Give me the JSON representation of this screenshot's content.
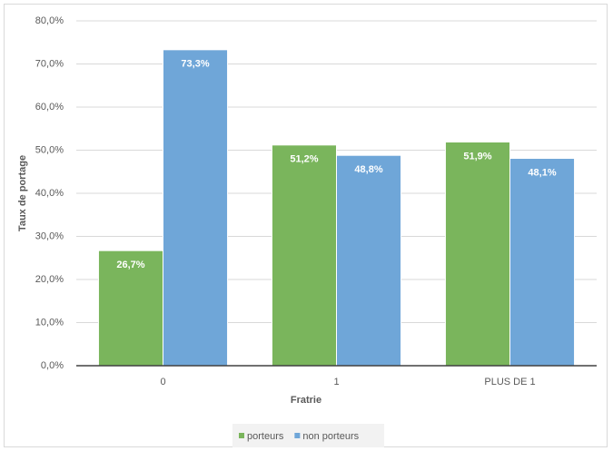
{
  "chart_data": {
    "type": "bar",
    "categories": [
      "0",
      "1",
      "PLUS DE 1"
    ],
    "series": [
      {
        "name": "porteurs",
        "color": "#7ab55c",
        "values": [
          26.7,
          51.2,
          51.9
        ],
        "value_labels": [
          "26,7%",
          "51,2%",
          "51,9%"
        ]
      },
      {
        "name": "non porteurs",
        "color": "#6fa6d8",
        "values": [
          73.3,
          48.8,
          48.1
        ],
        "value_labels": [
          "73,3%",
          "48,8%",
          "48,1%"
        ]
      }
    ],
    "x_label": "Fratrie",
    "y_label": "Taux de portage",
    "ylim": [
      0,
      80
    ],
    "yticks": [
      {
        "value": 0,
        "label": "0,0%"
      },
      {
        "value": 10,
        "label": "10,0%"
      },
      {
        "value": 20,
        "label": "20,0%"
      },
      {
        "value": 30,
        "label": "30,0%"
      },
      {
        "value": 40,
        "label": "40,0%"
      },
      {
        "value": 50,
        "label": "50,0%"
      },
      {
        "value": 60,
        "label": "60,0%"
      },
      {
        "value": 70,
        "label": "70,0%"
      },
      {
        "value": 80,
        "label": "80,0%"
      }
    ],
    "grid": true,
    "legend": "bottom"
  }
}
